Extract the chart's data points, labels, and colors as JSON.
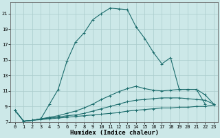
{
  "title": "",
  "xlabel": "Humidex (Indice chaleur)",
  "background_color": "#cce8e8",
  "grid_color": "#aacccc",
  "line_color": "#1a6b6b",
  "xlim": [
    -0.5,
    23.5
  ],
  "ylim": [
    7,
    22.5
  ],
  "xticks": [
    0,
    1,
    2,
    3,
    4,
    5,
    6,
    7,
    8,
    9,
    10,
    11,
    12,
    13,
    14,
    15,
    16,
    17,
    18,
    19,
    20,
    21,
    22,
    23
  ],
  "yticks": [
    7,
    9,
    11,
    13,
    15,
    17,
    19,
    21
  ],
  "series": [
    {
      "x": [
        0,
        1,
        2,
        3,
        4,
        5,
        6,
        7,
        8,
        9,
        10,
        11,
        12,
        13,
        14,
        15,
        16,
        17,
        18,
        19,
        20,
        21,
        22
      ],
      "y": [
        8.5,
        7.1,
        7.2,
        7.4,
        9.3,
        11.2,
        14.8,
        17.3,
        18.5,
        20.2,
        21.0,
        21.7,
        21.6,
        21.5,
        19.3,
        17.8,
        16.0,
        14.5,
        15.3,
        11.2,
        11.2,
        11.2,
        9.3
      ]
    },
    {
      "x": [
        0,
        1,
        2,
        3,
        4,
        5,
        6,
        7,
        8,
        9,
        10,
        11,
        12,
        13,
        14,
        15,
        16,
        17,
        18,
        19,
        20,
        21,
        22,
        23
      ],
      "y": [
        8.5,
        7.1,
        7.2,
        7.4,
        7.6,
        7.8,
        8.1,
        8.4,
        8.8,
        9.3,
        9.9,
        10.4,
        10.9,
        11.3,
        11.6,
        11.3,
        11.1,
        11.0,
        11.1,
        11.2,
        11.2,
        11.2,
        10.5,
        9.3
      ]
    },
    {
      "x": [
        0,
        1,
        2,
        3,
        4,
        5,
        6,
        7,
        8,
        9,
        10,
        11,
        12,
        13,
        14,
        15,
        16,
        17,
        18,
        19,
        20,
        21,
        22,
        23
      ],
      "y": [
        8.5,
        7.1,
        7.2,
        7.4,
        7.5,
        7.6,
        7.8,
        7.9,
        8.1,
        8.4,
        8.7,
        9.0,
        9.3,
        9.6,
        9.8,
        9.9,
        10.0,
        10.1,
        10.1,
        10.1,
        10.0,
        9.9,
        9.8,
        9.3
      ]
    },
    {
      "x": [
        0,
        1,
        2,
        3,
        4,
        5,
        6,
        7,
        8,
        9,
        10,
        11,
        12,
        13,
        14,
        15,
        16,
        17,
        18,
        19,
        20,
        21,
        22,
        23
      ],
      "y": [
        8.5,
        7.1,
        7.2,
        7.3,
        7.4,
        7.5,
        7.6,
        7.7,
        7.8,
        7.9,
        8.0,
        8.1,
        8.2,
        8.4,
        8.5,
        8.6,
        8.7,
        8.8,
        8.8,
        8.9,
        8.9,
        9.0,
        9.0,
        9.2
      ]
    }
  ]
}
